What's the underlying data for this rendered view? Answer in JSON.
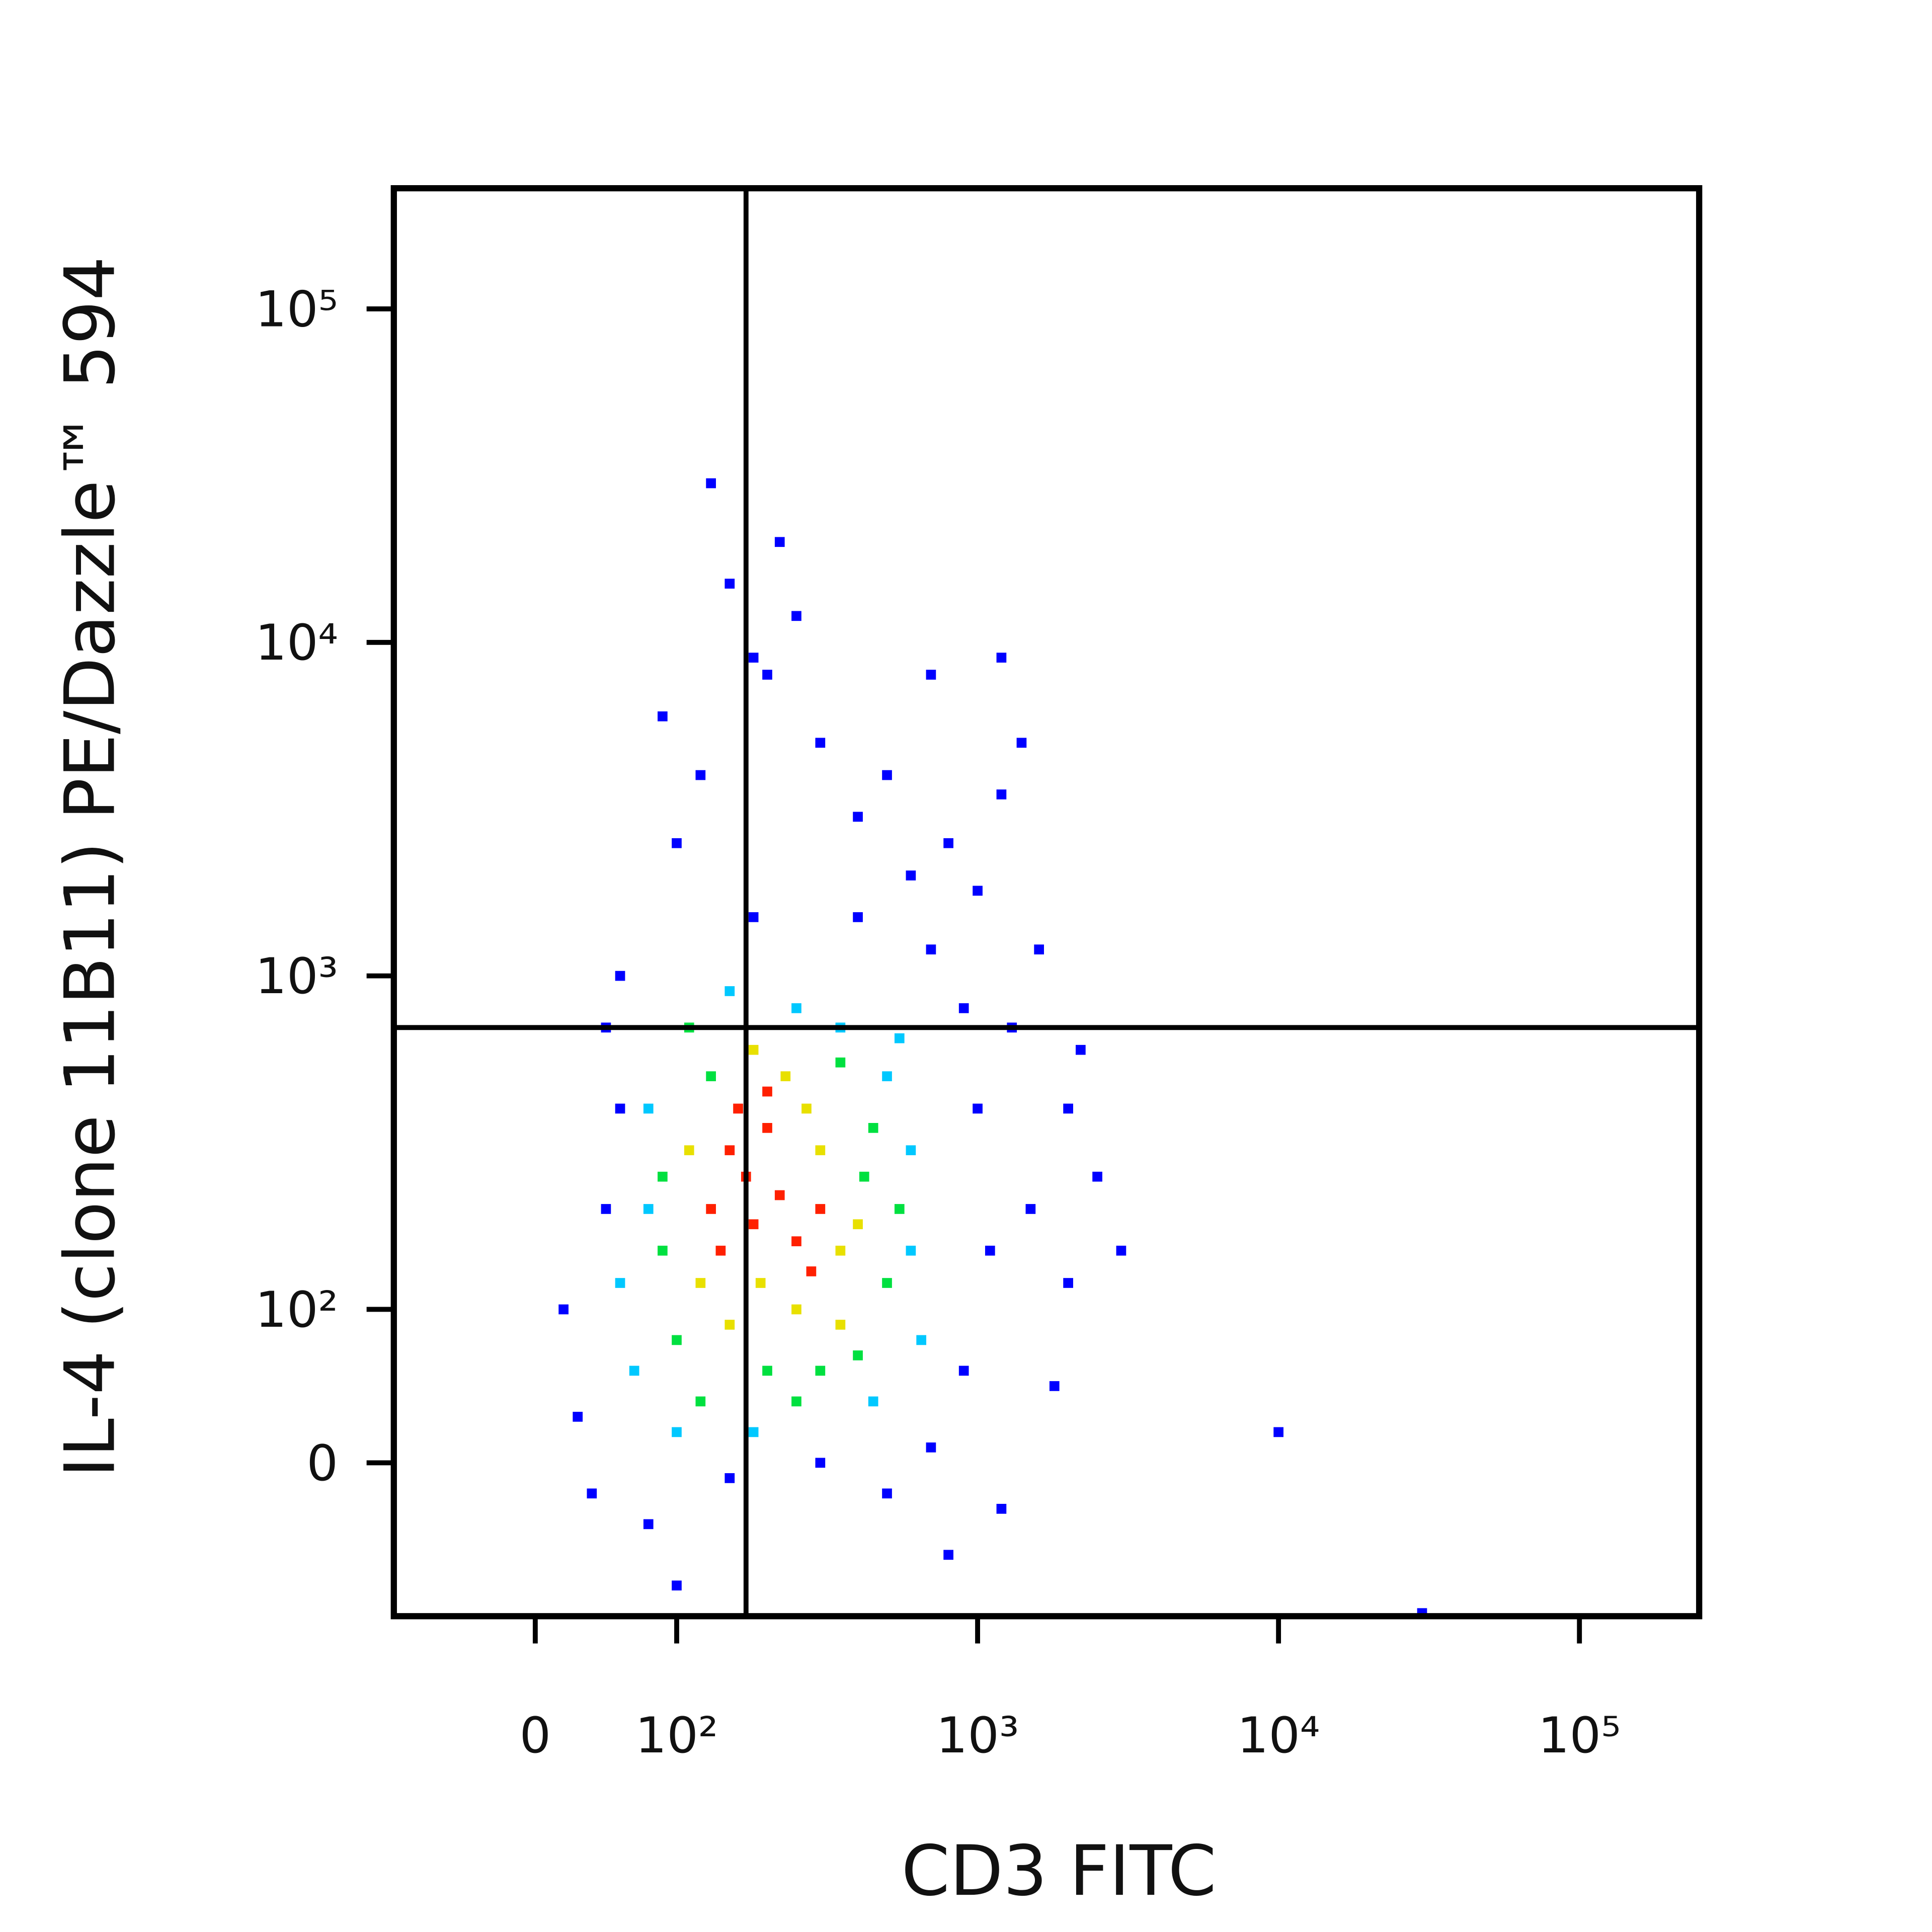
{
  "chart_data": {
    "type": "scatter",
    "scale": "biexponential",
    "x_label": "CD3 FITC",
    "y_label": "IL-4 (clone 11B11) PE/Dazzle™ 594",
    "xlim": [
      -100,
      250000
    ],
    "ylim": [
      -100,
      230000
    ],
    "xticks": [
      0,
      {
        "value": 100,
        "label": "10²"
      },
      {
        "value": 1000,
        "label": "10³"
      },
      {
        "value": 10000,
        "label": "10⁴"
      },
      {
        "value": 100000,
        "label": "10⁵"
      }
    ],
    "yticks": [
      0,
      {
        "value": 100,
        "label": "10²"
      },
      {
        "value": 1000,
        "label": "10³"
      },
      {
        "value": 10000,
        "label": "10⁴"
      },
      {
        "value": 100000,
        "label": "10⁵"
      }
    ],
    "gates": {
      "x": 170,
      "y": 700
    },
    "series": [
      {
        "color": "#0000ff",
        "x": [
          30,
          20,
          40,
          50,
          60,
          80,
          100,
          150,
          300,
          500,
          700,
          900,
          1100,
          1500,
          2000,
          2500,
          3000,
          1800,
          1200,
          800,
          1000,
          900,
          700,
          600,
          400,
          300,
          200,
          150,
          250,
          120,
          100,
          90,
          180,
          500,
          800,
          1000,
          1400,
          1200,
          700,
          400,
          130,
          180,
          220,
          1200,
          10000,
          30000,
          60,
          50,
          1300,
          2000,
          1600,
          2200
        ],
        "y": [
          30,
          100,
          -20,
          200,
          400,
          -40,
          -80,
          -10,
          0,
          -20,
          10,
          60,
          150,
          200,
          120,
          250,
          150,
          50,
          -30,
          -60,
          400,
          800,
          1200,
          2000,
          3000,
          5000,
          8000,
          15000,
          12000,
          4000,
          2500,
          6000,
          1500,
          4000,
          2500,
          1800,
          5000,
          3500,
          8000,
          1500,
          30000,
          9000,
          20000,
          9000,
          20,
          -98,
          1000,
          700,
          700,
          400,
          1200,
          600
        ]
      },
      {
        "color": "#00c8ff",
        "x": [
          70,
          80,
          600,
          600,
          500,
          350,
          250,
          150,
          60,
          100,
          450,
          650,
          180,
          80,
          550
        ],
        "y": [
          60,
          200,
          150,
          300,
          500,
          700,
          800,
          900,
          120,
          20,
          40,
          80,
          20,
          400,
          650
        ]
      },
      {
        "color": "#00e040",
        "x": [
          100,
          90,
          420,
          500,
          200,
          300,
          450,
          130,
          350,
          90,
          550,
          250,
          120,
          400,
          110
        ],
        "y": [
          80,
          150,
          250,
          120,
          60,
          60,
          350,
          500,
          550,
          250,
          200,
          40,
          40,
          70,
          700
        ]
      },
      {
        "color": "#e8e000",
        "x": [
          120,
          250,
          350,
          190,
          110,
          300,
          400,
          230,
          150,
          350,
          270,
          180
        ],
        "y": [
          120,
          100,
          150,
          120,
          300,
          300,
          180,
          500,
          90,
          90,
          400,
          600
        ]
      },
      {
        "color": "#ff2000",
        "x": [
          150,
          170,
          200,
          130,
          180,
          220,
          250,
          300,
          160,
          200,
          140,
          280
        ],
        "y": [
          300,
          250,
          350,
          200,
          180,
          220,
          160,
          200,
          400,
          450,
          150,
          130
        ]
      }
    ]
  }
}
